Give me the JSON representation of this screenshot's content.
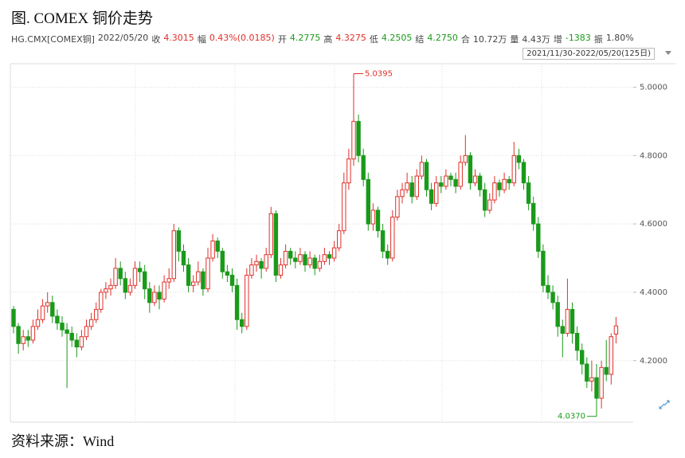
{
  "chart_data": {
    "type": "candlestick",
    "title": "图. COMEX 铜价走势",
    "info": [
      {
        "label": "HG.CMX[COMEX铜]",
        "color": "#444"
      },
      {
        "label": "2022/05/20",
        "color": "#444"
      },
      {
        "label": "收",
        "color": "#444"
      },
      {
        "label": "4.3015",
        "color": "#e0302a"
      },
      {
        "label": "幅",
        "color": "#444"
      },
      {
        "label": "0.43%(0.0185)",
        "color": "#e0302a"
      },
      {
        "label": "开",
        "color": "#444"
      },
      {
        "label": "4.2775",
        "color": "#1a9a1a"
      },
      {
        "label": "高",
        "color": "#444"
      },
      {
        "label": "4.3275",
        "color": "#e0302a"
      },
      {
        "label": "低",
        "color": "#444"
      },
      {
        "label": "4.2505",
        "color": "#1a9a1a"
      },
      {
        "label": "结",
        "color": "#444"
      },
      {
        "label": "4.2750",
        "color": "#1a9a1a"
      },
      {
        "label": "合",
        "color": "#444"
      },
      {
        "label": "10.72万",
        "color": "#444"
      },
      {
        "label": "量",
        "color": "#444"
      },
      {
        "label": "4.43万",
        "color": "#444"
      },
      {
        "label": "增",
        "color": "#444"
      },
      {
        "label": "-1383",
        "color": "#1a9a1a"
      },
      {
        "label": "振",
        "color": "#444"
      },
      {
        "label": "1.80%",
        "color": "#444"
      }
    ],
    "range": "2021/11/30-2022/05/20(125日)",
    "source": "资料来源：Wind",
    "up_color": "#e0302a",
    "down_color": "#1a9a1a",
    "grid": true,
    "ylim": [
      4.02,
      5.05
    ],
    "yticks": [
      {
        "value": 4.2,
        "label": "4.2000"
      },
      {
        "value": 4.4,
        "label": "4.4000"
      },
      {
        "value": 4.6,
        "label": "4.6000"
      },
      {
        "value": 4.8,
        "label": "4.8000"
      },
      {
        "value": 5.0,
        "label": "5.0000"
      }
    ],
    "max_label": 5.0395,
    "min_label": {
      "value": 4.037,
      "label": "4.0370"
    },
    "ohlc": [
      [
        4.35,
        4.36,
        4.28,
        4.3
      ],
      [
        4.3,
        4.31,
        4.22,
        4.25
      ],
      [
        4.25,
        4.29,
        4.23,
        4.27
      ],
      [
        4.27,
        4.29,
        4.24,
        4.26
      ],
      [
        4.26,
        4.32,
        4.25,
        4.3
      ],
      [
        4.3,
        4.35,
        4.29,
        4.32
      ],
      [
        4.32,
        4.38,
        4.31,
        4.36
      ],
      [
        4.36,
        4.4,
        4.34,
        4.37
      ],
      [
        4.37,
        4.39,
        4.31,
        4.33
      ],
      [
        4.33,
        4.35,
        4.29,
        4.31
      ],
      [
        4.31,
        4.33,
        4.27,
        4.29
      ],
      [
        4.29,
        4.31,
        4.12,
        4.28
      ],
      [
        4.28,
        4.3,
        4.24,
        4.26
      ],
      [
        4.26,
        4.28,
        4.21,
        4.24
      ],
      [
        4.24,
        4.29,
        4.23,
        4.27
      ],
      [
        4.27,
        4.32,
        4.26,
        4.3
      ],
      [
        4.3,
        4.34,
        4.29,
        4.32
      ],
      [
        4.32,
        4.37,
        4.31,
        4.35
      ],
      [
        4.35,
        4.41,
        4.34,
        4.4
      ],
      [
        4.4,
        4.43,
        4.38,
        4.41
      ],
      [
        4.41,
        4.44,
        4.39,
        4.42
      ],
      [
        4.42,
        4.5,
        4.41,
        4.47
      ],
      [
        4.47,
        4.49,
        4.42,
        4.44
      ],
      [
        4.44,
        4.46,
        4.38,
        4.4
      ],
      [
        4.4,
        4.44,
        4.39,
        4.42
      ],
      [
        4.42,
        4.49,
        4.41,
        4.47
      ],
      [
        4.47,
        4.49,
        4.43,
        4.46
      ],
      [
        4.46,
        4.48,
        4.38,
        4.41
      ],
      [
        4.41,
        4.43,
        4.34,
        4.37
      ],
      [
        4.37,
        4.42,
        4.36,
        4.4
      ],
      [
        4.4,
        4.42,
        4.35,
        4.38
      ],
      [
        4.38,
        4.45,
        4.37,
        4.43
      ],
      [
        4.43,
        4.47,
        4.41,
        4.44
      ],
      [
        4.44,
        4.6,
        4.43,
        4.58
      ],
      [
        4.58,
        4.59,
        4.49,
        4.52
      ],
      [
        4.52,
        4.54,
        4.46,
        4.48
      ],
      [
        4.48,
        4.5,
        4.4,
        4.42
      ],
      [
        4.42,
        4.45,
        4.4,
        4.43
      ],
      [
        4.43,
        4.49,
        4.42,
        4.46
      ],
      [
        4.46,
        4.47,
        4.39,
        4.41
      ],
      [
        4.41,
        4.53,
        4.4,
        4.5
      ],
      [
        4.5,
        4.57,
        4.49,
        4.55
      ],
      [
        4.55,
        4.56,
        4.5,
        4.52
      ],
      [
        4.52,
        4.53,
        4.44,
        4.46
      ],
      [
        4.46,
        4.48,
        4.43,
        4.45
      ],
      [
        4.45,
        4.47,
        4.4,
        4.42
      ],
      [
        4.42,
        4.44,
        4.29,
        4.32
      ],
      [
        4.32,
        4.34,
        4.28,
        4.3
      ],
      [
        4.3,
        4.47,
        4.29,
        4.45
      ],
      [
        4.45,
        4.5,
        4.44,
        4.48
      ],
      [
        4.48,
        4.51,
        4.46,
        4.49
      ],
      [
        4.49,
        4.5,
        4.44,
        4.47
      ],
      [
        4.47,
        4.53,
        4.46,
        4.51
      ],
      [
        4.51,
        4.65,
        4.5,
        4.63
      ],
      [
        4.63,
        4.64,
        4.43,
        4.45
      ],
      [
        4.45,
        4.5,
        4.44,
        4.48
      ],
      [
        4.48,
        4.54,
        4.47,
        4.52
      ],
      [
        4.52,
        4.53,
        4.48,
        4.5
      ],
      [
        4.5,
        4.52,
        4.47,
        4.49
      ],
      [
        4.49,
        4.53,
        4.48,
        4.51
      ],
      [
        4.51,
        4.52,
        4.46,
        4.48
      ],
      [
        4.48,
        4.52,
        4.47,
        4.5
      ],
      [
        4.5,
        4.51,
        4.45,
        4.47
      ],
      [
        4.47,
        4.51,
        4.46,
        4.49
      ],
      [
        4.49,
        4.53,
        4.48,
        4.51
      ],
      [
        4.51,
        4.52,
        4.48,
        4.5
      ],
      [
        4.5,
        4.55,
        4.49,
        4.53
      ],
      [
        4.53,
        4.6,
        4.52,
        4.58
      ],
      [
        4.58,
        4.75,
        4.57,
        4.72
      ],
      [
        4.72,
        4.82,
        4.7,
        4.79
      ],
      [
        4.79,
        5.0395,
        4.77,
        4.9
      ],
      [
        4.9,
        4.92,
        4.78,
        4.8
      ],
      [
        4.8,
        4.82,
        4.71,
        4.73
      ],
      [
        4.73,
        4.75,
        4.58,
        4.6
      ],
      [
        4.6,
        4.66,
        4.58,
        4.64
      ],
      [
        4.64,
        4.65,
        4.56,
        4.58
      ],
      [
        4.58,
        4.6,
        4.5,
        4.52
      ],
      [
        4.52,
        4.54,
        4.48,
        4.5
      ],
      [
        4.5,
        4.64,
        4.49,
        4.62
      ],
      [
        4.62,
        4.7,
        4.61,
        4.68
      ],
      [
        4.68,
        4.72,
        4.66,
        4.7
      ],
      [
        4.7,
        4.75,
        4.69,
        4.72
      ],
      [
        4.72,
        4.74,
        4.66,
        4.68
      ],
      [
        4.68,
        4.76,
        4.67,
        4.74
      ],
      [
        4.74,
        4.8,
        4.73,
        4.78
      ],
      [
        4.78,
        4.79,
        4.68,
        4.7
      ],
      [
        4.7,
        4.72,
        4.64,
        4.66
      ],
      [
        4.66,
        4.74,
        4.65,
        4.72
      ],
      [
        4.72,
        4.74,
        4.69,
        4.71
      ],
      [
        4.71,
        4.76,
        4.7,
        4.74
      ],
      [
        4.74,
        4.75,
        4.71,
        4.73
      ],
      [
        4.73,
        4.75,
        4.69,
        4.71
      ],
      [
        4.71,
        4.8,
        4.7,
        4.78
      ],
      [
        4.78,
        4.86,
        4.77,
        4.8
      ],
      [
        4.8,
        4.81,
        4.7,
        4.72
      ],
      [
        4.72,
        4.76,
        4.71,
        4.74
      ],
      [
        4.74,
        4.75,
        4.68,
        4.7
      ],
      [
        4.7,
        4.72,
        4.62,
        4.64
      ],
      [
        4.64,
        4.69,
        4.63,
        4.67
      ],
      [
        4.67,
        4.74,
        4.66,
        4.72
      ],
      [
        4.72,
        4.73,
        4.68,
        4.7
      ],
      [
        4.7,
        4.75,
        4.69,
        4.73
      ],
      [
        4.73,
        4.74,
        4.7,
        4.72
      ],
      [
        4.72,
        4.84,
        4.71,
        4.8
      ],
      [
        4.8,
        4.82,
        4.76,
        4.78
      ],
      [
        4.78,
        4.79,
        4.7,
        4.72
      ],
      [
        4.72,
        4.74,
        4.64,
        4.66
      ],
      [
        4.66,
        4.68,
        4.58,
        4.6
      ],
      [
        4.6,
        4.62,
        4.5,
        4.52
      ],
      [
        4.52,
        4.54,
        4.4,
        4.42
      ],
      [
        4.42,
        4.45,
        4.38,
        4.4
      ],
      [
        4.4,
        4.42,
        4.35,
        4.37
      ],
      [
        4.37,
        4.39,
        4.27,
        4.3
      ],
      [
        4.3,
        4.32,
        4.21,
        4.28
      ],
      [
        4.28,
        4.44,
        4.27,
        4.35
      ],
      [
        4.35,
        4.37,
        4.25,
        4.28
      ],
      [
        4.28,
        4.3,
        4.2,
        4.23
      ],
      [
        4.23,
        4.25,
        4.16,
        4.19
      ],
      [
        4.19,
        4.21,
        4.12,
        4.14
      ],
      [
        4.14,
        4.2,
        4.11,
        4.15
      ],
      [
        4.15,
        4.19,
        4.037,
        4.09
      ],
      [
        4.09,
        4.2,
        4.06,
        4.18
      ],
      [
        4.18,
        4.26,
        4.14,
        4.16
      ],
      [
        4.16,
        4.28,
        4.13,
        4.27
      ],
      [
        4.2775,
        4.3275,
        4.2505,
        4.3015
      ]
    ]
  }
}
